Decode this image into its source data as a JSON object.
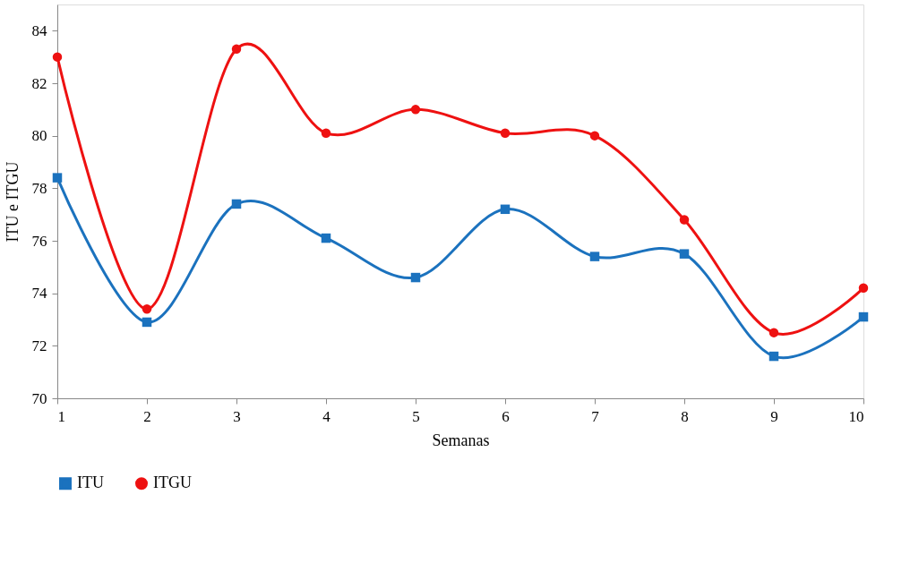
{
  "chart_data": {
    "type": "line",
    "xlabel": "Semanas",
    "ylabel": "ITU e ITGU",
    "x": [
      1,
      2,
      3,
      4,
      5,
      6,
      7,
      8,
      9,
      10
    ],
    "series": [
      {
        "name": "ITU",
        "color": "#1b72be",
        "marker": "square",
        "values": [
          78.4,
          72.9,
          77.4,
          76.1,
          74.6,
          77.2,
          75.4,
          75.5,
          71.6,
          73.1
        ]
      },
      {
        "name": "ITGU",
        "color": "#ee1111",
        "marker": "circle",
        "values": [
          83.0,
          73.4,
          83.3,
          80.1,
          81.0,
          80.1,
          80.0,
          76.8,
          72.5,
          74.2
        ]
      }
    ],
    "xlim": [
      1,
      10
    ],
    "xticks": [
      1,
      2,
      3,
      4,
      5,
      6,
      7,
      8,
      9,
      10
    ],
    "ylim": [
      70,
      85
    ],
    "yticks": [
      70,
      72,
      74,
      76,
      78,
      80,
      82,
      84
    ],
    "grid": false,
    "legend": "bottom",
    "line_style": "solid"
  }
}
